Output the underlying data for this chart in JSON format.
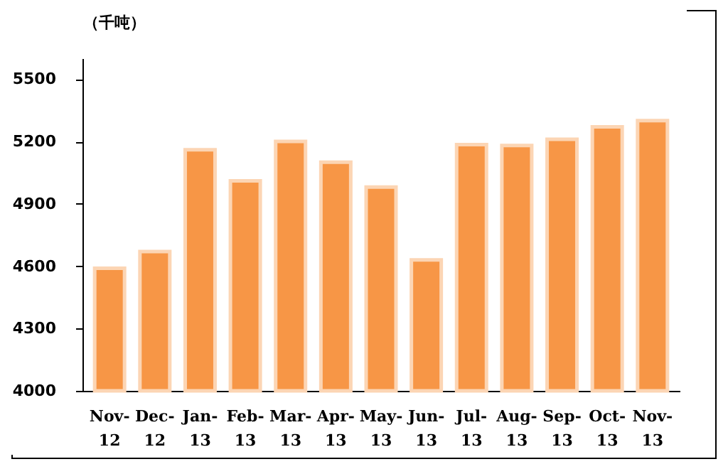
{
  "chart_data": {
    "type": "bar",
    "ylabel": "（千吨）",
    "categories": [
      "Nov-12",
      "Dec-12",
      "Jan-13",
      "Feb-13",
      "Mar-13",
      "Apr-13",
      "May-13",
      "Jun-13",
      "Jul-13",
      "Aug-13",
      "Sep-13",
      "Oct-13",
      "Nov-13"
    ],
    "values": [
      4590,
      4670,
      5160,
      5010,
      5200,
      5100,
      4980,
      4630,
      5185,
      5180,
      5210,
      5270,
      5300
    ],
    "color": "#f79646",
    "ylim": [
      4000,
      5600
    ],
    "yticks": [
      4000,
      4300,
      4600,
      4900,
      5200,
      5500
    ],
    "grid": false
  }
}
